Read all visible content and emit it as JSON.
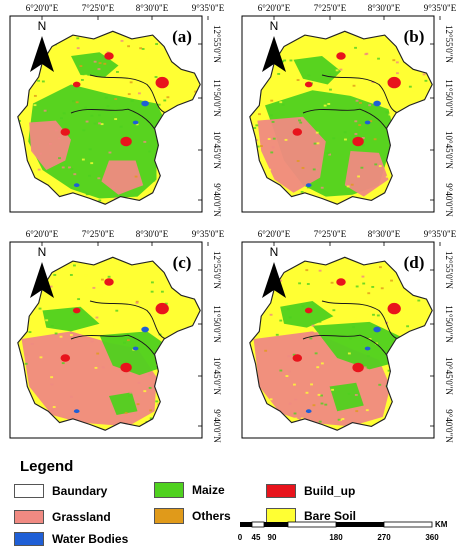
{
  "panels": [
    {
      "label": "(a)"
    },
    {
      "label": "(b)"
    },
    {
      "label": "(c)"
    },
    {
      "label": "(d)"
    }
  ],
  "north_label": "N",
  "lon_ticks": [
    "6°20'0\"E",
    "7°25'0\"E",
    "8°30'0\"E",
    "9°35'0\"E"
  ],
  "lat_ticks": [
    "12°55'0\"N",
    "11°50'0\"N",
    "10°45'0\"N",
    "9°40'0\"N"
  ],
  "legend": {
    "title": "Legend",
    "items": [
      {
        "label": "Baundary",
        "color": "#ffffff"
      },
      {
        "label": "Maize",
        "color": "#4fd11f"
      },
      {
        "label": "Build_up",
        "color": "#e8141c"
      },
      {
        "label": "Grassland",
        "color": "#f08a82"
      },
      {
        "label": "Others",
        "color": "#e09a1a"
      },
      {
        "label": "Bare Soil",
        "color": "#ffff33"
      },
      {
        "label": "Water Bodies",
        "color": "#1f5fd6"
      }
    ]
  },
  "scale": {
    "unit": "KM",
    "ticks": [
      "0",
      "45",
      "90",
      "180",
      "270",
      "360"
    ]
  }
}
